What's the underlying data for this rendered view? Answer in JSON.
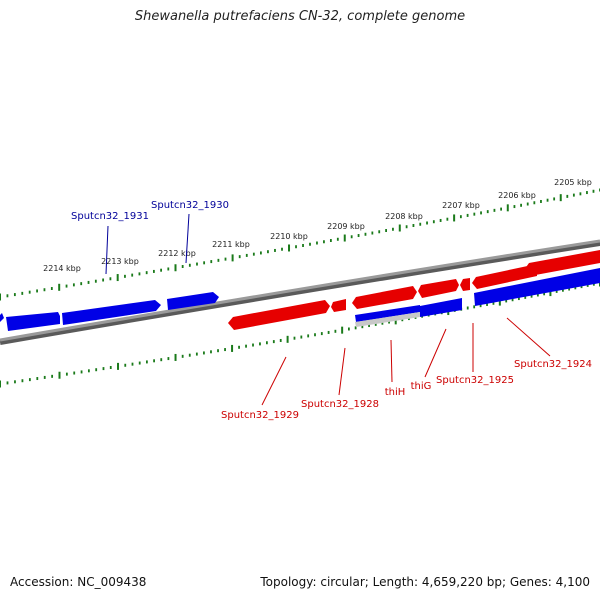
{
  "title": "Shewanella putrefaciens CN-32, complete genome",
  "footer": {
    "accession": "Accession: NC_009438",
    "summary": "Topology: circular; Length: 4,659,220 bp; Genes: 4,100"
  },
  "colors": {
    "forward_strand": "#e60000",
    "reverse_strand": "#0000e6",
    "backbone": "#808080",
    "tick": "#1a7a1a",
    "forward_label": "#cc0000",
    "reverse_label": "#000099"
  },
  "scale": {
    "unit": "kbp",
    "outer_ticks": [
      "2214 kbp",
      "2213 kbp",
      "2212 kbp",
      "2211 kbp",
      "2210 kbp",
      "2209 kbp",
      "2208 kbp",
      "2207 kbp",
      "2206 kbp",
      "2205 kbp"
    ]
  },
  "reverse_genes": [
    {
      "label": "Sputcn32_1931"
    },
    {
      "label": "Sputcn32_1930"
    }
  ],
  "forward_genes": [
    {
      "label": "Sputcn32_1929"
    },
    {
      "label": "Sputcn32_1928"
    },
    {
      "label": "thiH"
    },
    {
      "label": "thiG"
    },
    {
      "label": "Sputcn32_1925"
    },
    {
      "label": "Sputcn32_1924"
    }
  ]
}
